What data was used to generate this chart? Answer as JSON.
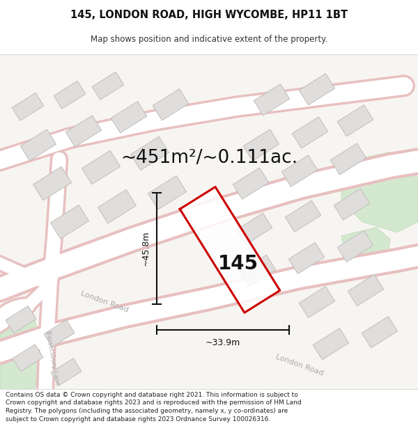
{
  "title_line1": "145, LONDON ROAD, HIGH WYCOMBE, HP11 1BT",
  "title_line2": "Map shows position and indicative extent of the property.",
  "area_text": "~451m²/~0.111ac.",
  "label_145": "145",
  "dim_height": "~45.8m",
  "dim_width": "~33.9m",
  "footer_text": "Contains OS data © Crown copyright and database right 2021. This information is subject to Crown copyright and database rights 2023 and is reproduced with the permission of HM Land Registry. The polygons (including the associated geometry, namely x, y co-ordinates) are subject to Crown copyright and database rights 2023 Ordnance Survey 100026316.",
  "map_bg": "#f5f3f0",
  "road_color": "#ffffff",
  "road_outline": "#e8c0c0",
  "building_fill": "#e0dedd",
  "building_outline": "#c0bdba",
  "property_color": "#cc0000",
  "dim_line_color": "#111111",
  "green_fill": "#d4e8d0",
  "title_fontsize": 10.5,
  "subtitle_fontsize": 8.5,
  "area_fontsize": 19,
  "label_fontsize": 20,
  "dim_fontsize": 9,
  "footer_fontsize": 6.5,
  "road_label_color": "#aaaaaa",
  "road_label_size": 8
}
